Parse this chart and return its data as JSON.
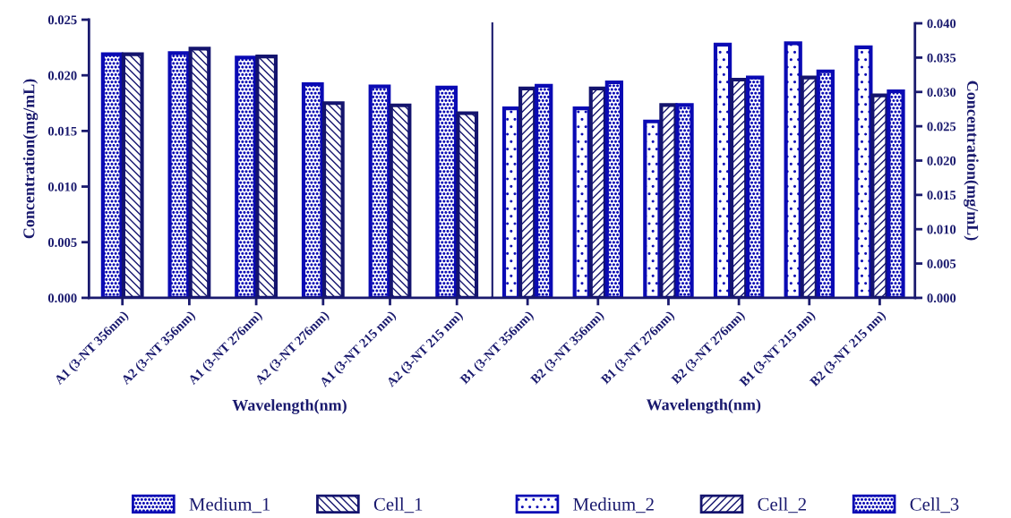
{
  "chart_data": [
    {
      "type": "bar",
      "xlabel": "Wavelength(nm)",
      "ylabel": "Concentration(mg/mL)",
      "categories": [
        "A1 (3-NT 356nm)",
        "A2 (3-NT 356nm)",
        "A1 (3-NT 276nm)",
        "A2 (3-NT 276nm)",
        "A1 (3-NT 215 nm)",
        "A2 (3-NT 215 nm)"
      ],
      "series": [
        {
          "name": "Medium_1",
          "color": "#0a0ab4",
          "values": [
            0.0219,
            0.022,
            0.0216,
            0.0192,
            0.019,
            0.0189
          ]
        },
        {
          "name": "Cell_1",
          "color": "#14146e",
          "values": [
            0.0219,
            0.0224,
            0.0217,
            0.0175,
            0.0173,
            0.0166
          ]
        }
      ],
      "ylim": [
        0,
        0.025
      ],
      "yticks": [
        {
          "value": 0,
          "label": "0.000"
        },
        {
          "value": 0.005,
          "label": "0.005"
        },
        {
          "value": 0.01,
          "label": "0.010"
        },
        {
          "value": 0.015,
          "label": "0.015"
        },
        {
          "value": 0.02,
          "label": "0.020"
        },
        {
          "value": 0.025,
          "label": "0.025"
        }
      ],
      "grid": false,
      "legend": "bottom"
    },
    {
      "type": "bar",
      "xlabel": "Wavelength(nm)",
      "y2label": "Concentration(mg/mL)",
      "categories": [
        "B1 (3-NT 356nm)",
        "B2 (3-NT 356nm)",
        "B1 (3-NT 276nm)",
        "B2 (3-NT 276nm)",
        "B1 (3-NT 215 nm)",
        "B2 (3-NT 215 nm)"
      ],
      "series": [
        {
          "name": "Medium_2",
          "color": "#0a0ab4",
          "axis": "y2",
          "values": [
            0.0276,
            0.0276,
            0.0257,
            0.0369,
            0.0371,
            0.0365
          ]
        },
        {
          "name": "Cell_2",
          "color": "#14146e",
          "axis": "y2",
          "values": [
            0.0305,
            0.0305,
            0.0281,
            0.0318,
            0.0321,
            0.0295
          ]
        },
        {
          "name": "Cell_3",
          "color": "#0a0ab4",
          "axis": "y2",
          "values": [
            0.0309,
            0.0314,
            0.0281,
            0.0321,
            0.033,
            0.0301
          ]
        }
      ],
      "y2lim": [
        0,
        0.04
      ],
      "y2ticks": [
        {
          "value": 0,
          "label": "0.000"
        },
        {
          "value": 0.005,
          "label": "0.005"
        },
        {
          "value": 0.01,
          "label": "0.010"
        },
        {
          "value": 0.015,
          "label": "0.015"
        },
        {
          "value": 0.02,
          "label": "0.020"
        },
        {
          "value": 0.025,
          "label": "0.025"
        },
        {
          "value": 0.03,
          "label": "0.030"
        },
        {
          "value": 0.035,
          "label": "0.035"
        },
        {
          "value": 0.04,
          "label": "0.040"
        }
      ],
      "grid": false,
      "legend": "bottom"
    }
  ]
}
